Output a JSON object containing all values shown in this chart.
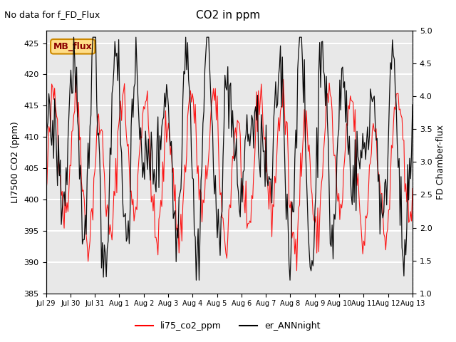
{
  "title": "CO2 in ppm",
  "top_left_text": "No data for f_FD_Flux",
  "ylabel_left": "LI7500 CO2 (ppm)",
  "ylabel_right": "FD Chamber-flux",
  "ylim_left": [
    385,
    427
  ],
  "ylim_right": [
    1.0,
    5.0
  ],
  "yticks_left": [
    385,
    390,
    395,
    400,
    405,
    410,
    415,
    420,
    425
  ],
  "yticks_right": [
    1.0,
    1.5,
    2.0,
    2.5,
    3.0,
    3.5,
    4.0,
    4.5,
    5.0
  ],
  "xtick_labels": [
    "Jul 29",
    "Jul 30",
    "Jul 31",
    "Aug 1",
    "Aug 2",
    "Aug 3",
    "Aug 4",
    "Aug 5",
    "Aug 6",
    "Aug 7",
    "Aug 8",
    "Aug 9",
    "Aug 10",
    "Aug 11",
    "Aug 12",
    "Aug 13"
  ],
  "legend_entries": [
    "li75_co2_ppm",
    "er_ANNnight"
  ],
  "legend_colors": [
    "red",
    "black"
  ],
  "mb_flux_box_color": "#ffdd88",
  "mb_flux_border_color": "#cc8800",
  "mb_flux_text": "MB_flux",
  "background_gray": "#e8e8e8",
  "grid_color": "#ffffff",
  "line_color_red": "#ff0000",
  "line_color_black": "#000000"
}
